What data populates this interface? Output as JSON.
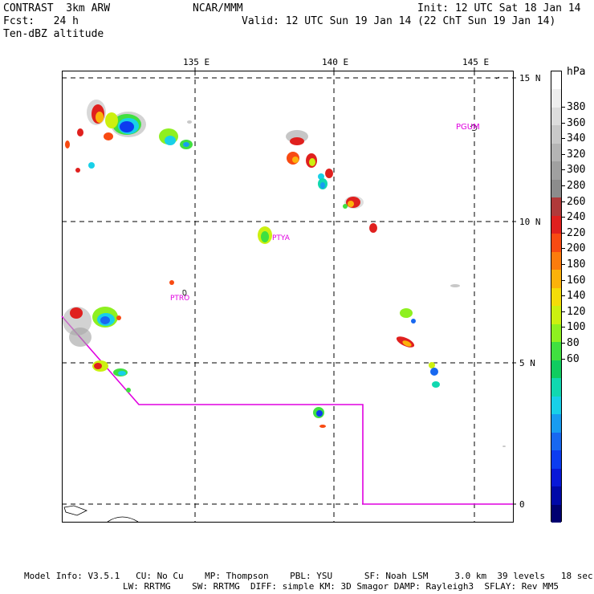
{
  "header": {
    "left_line1": "CONTRAST  3km ARW",
    "left_line2": "Fcst:   24 h",
    "left_line3": "Ten-dBZ altitude",
    "center": "NCAR/MMM",
    "init": "Init: 12 UTC Sat 18 Jan 14",
    "valid": "Valid: 12 UTC Sun 19 Jan 14 (22 ChT Sun 19 Jan 14)"
  },
  "map": {
    "lon_labels": [
      "135 E",
      "140 E",
      "145 E"
    ],
    "lat_labels": [
      "15 N",
      "10 N",
      "5 N",
      "0"
    ],
    "station_labels": [
      "PGUM",
      "PTYA",
      "PTRO"
    ]
  },
  "colorbar": {
    "unit": "hPa",
    "labels": [
      "380",
      "360",
      "340",
      "320",
      "300",
      "280",
      "260",
      "240",
      "220",
      "200",
      "180",
      "160",
      "140",
      "120",
      "100",
      "80",
      "60"
    ],
    "colors": [
      "#ffffff",
      "#eeeeee",
      "#dcdcdc",
      "#c8c8c8",
      "#b4b4b4",
      "#a0a0a0",
      "#8c8c8c",
      "#b03a3a",
      "#e0201e",
      "#f84a12",
      "#fc7c0c",
      "#fcb20a",
      "#f4dc08",
      "#ccf010",
      "#8ef020",
      "#40e040",
      "#10cc60",
      "#10d8b0",
      "#18d0e8",
      "#189cf0",
      "#1868f0",
      "#0c3cf0",
      "#0818d8",
      "#0008a8",
      "#000070"
    ]
  },
  "footer": {
    "line1": "Model Info: V3.5.1   CU: No Cu    MP: Thompson    PBL: YSU      SF: Noah LSM     3.0 km  39 levels   18 sec",
    "line2": "LW: RRTMG    SW: RRTMG  DIFF: simple KM: 3D Smagor DAMP: Rayleigh3  SFLAY: Rev MM5"
  }
}
